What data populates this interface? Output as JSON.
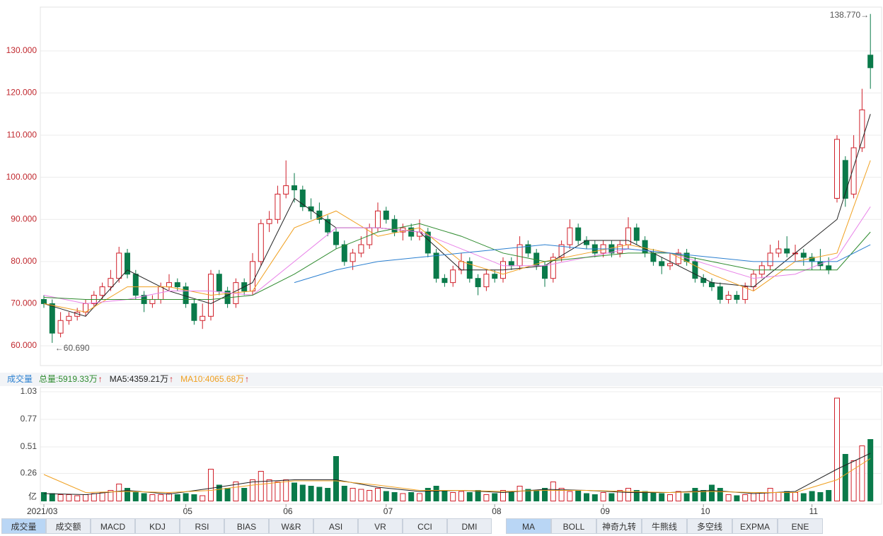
{
  "chart_data": [
    {
      "type": "candlestick",
      "up_color": "#d0202a",
      "down_color": "#0a7a4a",
      "ylim": [
        55.3,
        140.4
      ],
      "yticks": [
        {
          "value": 60,
          "label": "60.000"
        },
        {
          "value": 70,
          "label": "70.000"
        },
        {
          "value": 80,
          "label": "80.000"
        },
        {
          "value": 90,
          "label": "90.000"
        },
        {
          "value": 100,
          "label": "100.000"
        },
        {
          "value": 110,
          "label": "110.000"
        },
        {
          "value": 120,
          "label": "120.000"
        },
        {
          "value": 130,
          "label": "130.000"
        }
      ],
      "grid": true,
      "ohlc": [
        [
          71,
          72,
          69,
          70
        ],
        [
          70,
          71,
          60.69,
          63
        ],
        [
          63,
          68,
          62,
          66
        ],
        [
          66,
          68,
          65,
          67
        ],
        [
          67,
          69,
          66,
          68
        ],
        [
          68,
          71,
          67,
          70
        ],
        [
          70,
          73,
          69,
          72
        ],
        [
          72,
          75,
          71,
          74
        ],
        [
          74,
          78,
          73,
          76
        ],
        [
          76,
          83.5,
          75,
          82
        ],
        [
          82,
          83,
          76,
          77
        ],
        [
          77,
          78,
          71,
          72
        ],
        [
          72,
          73,
          68,
          70
        ],
        [
          70,
          72,
          69,
          71
        ],
        [
          71,
          75,
          70,
          74
        ],
        [
          74,
          77,
          73,
          75
        ],
        [
          75,
          76,
          73,
          74
        ],
        [
          74,
          75,
          69,
          70
        ],
        [
          70,
          71,
          65,
          66
        ],
        [
          66,
          70,
          64,
          67
        ],
        [
          67,
          78,
          66,
          77
        ],
        [
          77,
          78,
          72,
          73
        ],
        [
          73,
          74,
          69,
          70
        ],
        [
          70,
          76,
          69,
          75
        ],
        [
          75,
          76,
          72,
          73
        ],
        [
          73,
          82,
          72,
          80
        ],
        [
          80,
          90,
          79,
          89
        ],
        [
          89,
          92,
          87,
          90
        ],
        [
          90,
          98,
          89,
          96
        ],
        [
          96,
          104,
          95,
          98
        ],
        [
          98,
          101,
          94,
          97
        ],
        [
          97,
          98,
          92,
          93
        ],
        [
          93,
          95,
          90,
          92
        ],
        [
          92,
          94,
          89,
          90
        ],
        [
          90,
          91,
          86,
          87
        ],
        [
          87,
          88,
          83,
          84
        ],
        [
          84,
          85,
          79,
          80
        ],
        [
          80,
          83,
          78,
          82
        ],
        [
          82,
          86,
          81,
          84
        ],
        [
          84,
          89,
          83,
          88
        ],
        [
          88,
          94,
          87,
          92
        ],
        [
          92,
          93,
          89,
          90
        ],
        [
          90,
          91,
          86,
          87
        ],
        [
          87,
          89,
          85,
          88
        ],
        [
          88,
          89,
          85,
          86
        ],
        [
          86,
          90,
          85,
          87
        ],
        [
          87,
          88,
          81,
          82
        ],
        [
          82,
          83,
          75,
          76
        ],
        [
          76,
          77,
          74,
          75
        ],
        [
          75,
          79,
          74,
          78
        ],
        [
          78,
          82,
          77,
          80
        ],
        [
          80,
          81,
          75,
          76
        ],
        [
          76,
          77,
          72,
          74
        ],
        [
          74,
          78,
          73,
          77
        ],
        [
          77,
          78,
          75,
          76
        ],
        [
          76,
          81,
          75,
          80
        ],
        [
          80,
          81,
          78,
          79
        ],
        [
          79,
          86,
          78,
          84
        ],
        [
          84,
          85,
          81,
          82
        ],
        [
          82,
          83,
          78,
          79
        ],
        [
          79,
          80,
          74,
          76
        ],
        [
          76,
          82,
          75,
          81
        ],
        [
          81,
          85,
          80,
          84
        ],
        [
          84,
          90,
          83,
          88
        ],
        [
          88,
          89,
          84,
          85
        ],
        [
          85,
          86,
          83,
          84
        ],
        [
          84,
          85,
          81,
          82
        ],
        [
          82,
          85,
          81,
          84
        ],
        [
          84,
          85,
          81,
          82
        ],
        [
          82,
          85,
          81,
          84
        ],
        [
          84,
          90.5,
          83,
          88
        ],
        [
          88,
          89,
          84,
          85
        ],
        [
          85,
          86,
          81,
          82
        ],
        [
          82,
          83,
          79,
          80
        ],
        [
          80,
          81,
          77,
          79
        ],
        [
          79,
          82,
          78,
          79.5
        ],
        [
          79.5,
          83,
          79,
          82
        ],
        [
          82,
          83,
          79,
          80
        ],
        [
          80,
          81,
          75,
          76
        ],
        [
          76,
          77,
          74,
          75
        ],
        [
          75,
          76,
          73,
          74
        ],
        [
          74,
          75,
          70,
          71
        ],
        [
          71,
          73,
          70,
          72
        ],
        [
          72,
          73,
          70,
          71
        ],
        [
          71,
          75,
          70,
          74
        ],
        [
          74,
          78,
          73,
          77
        ],
        [
          77,
          80,
          76,
          79
        ],
        [
          79,
          84,
          78,
          82
        ],
        [
          82,
          85,
          81,
          83
        ],
        [
          83,
          86,
          81,
          82
        ],
        [
          82,
          84,
          80,
          82
        ],
        [
          82,
          83,
          79,
          81
        ],
        [
          81,
          82,
          78,
          80
        ],
        [
          80,
          83,
          78,
          79
        ],
        [
          79,
          81,
          77,
          78
        ],
        [
          95,
          110,
          94,
          109
        ],
        [
          104,
          105,
          93,
          95
        ],
        [
          96,
          110,
          95,
          107
        ],
        [
          107,
          121,
          106,
          116
        ],
        [
          129,
          138.77,
          121,
          126
        ]
      ],
      "lines": [
        {
          "color": "#222222",
          "x": [
            0,
            5,
            10,
            15,
            20,
            25,
            30,
            35,
            40,
            45,
            50,
            55,
            60,
            65,
            70,
            75,
            80,
            85,
            90,
            95,
            99
          ],
          "values": [
            70,
            67,
            78,
            73,
            70,
            75,
            95,
            88,
            88,
            87,
            78,
            78,
            79,
            85,
            85,
            80,
            75,
            74,
            82,
            90,
            115
          ]
        },
        {
          "color": "#f0a020",
          "x": [
            0,
            5,
            10,
            15,
            20,
            25,
            30,
            35,
            40,
            45,
            50,
            55,
            60,
            65,
            70,
            75,
            80,
            85,
            90,
            95,
            99
          ],
          "values": [
            70,
            68,
            74,
            74,
            72,
            73,
            88,
            92,
            86,
            88,
            80,
            77,
            80,
            82,
            84,
            82,
            77,
            73,
            80,
            82,
            104
          ]
        },
        {
          "color": "#e880e8",
          "x": [
            0,
            5,
            10,
            15,
            20,
            25,
            30,
            35,
            40,
            45,
            50,
            55,
            60,
            65,
            70,
            75,
            80,
            85,
            90,
            95,
            99
          ],
          "values": [
            72,
            70,
            71,
            73,
            73,
            72,
            80,
            88,
            88,
            87,
            83,
            79,
            79,
            81,
            83,
            82,
            79,
            76,
            77,
            81,
            93
          ]
        },
        {
          "color": "#2e8b2e",
          "x": [
            0,
            5,
            10,
            15,
            20,
            25,
            30,
            35,
            40,
            45,
            50,
            55,
            60,
            65,
            70,
            75,
            80,
            85,
            90,
            95,
            99
          ],
          "values": [
            71.5,
            71,
            71,
            71,
            71,
            72,
            77,
            83,
            87,
            89,
            86,
            82,
            80,
            81,
            82,
            82,
            80,
            78,
            78,
            78,
            87
          ]
        },
        {
          "color": "#2a7fd0",
          "x": [
            30,
            35,
            40,
            45,
            50,
            55,
            60,
            65,
            70,
            75,
            80,
            85,
            90,
            95,
            99
          ],
          "values": [
            75,
            78,
            80,
            81,
            82,
            83,
            84,
            83,
            83,
            82,
            81,
            80,
            80,
            80,
            84
          ]
        }
      ],
      "annotations": [
        {
          "text": "138.770→",
          "x": 99,
          "y": 138.77
        },
        {
          "text": "←60.690",
          "x": 1,
          "y": 60.69
        }
      ]
    },
    {
      "type": "bar",
      "unit": "亿",
      "header": {
        "title": "成交量",
        "items": [
          {
            "text": "总量:5919.33万",
            "arrow": "↑",
            "color": "#2e8b2e"
          },
          {
            "text": "MA5:4359.21万",
            "arrow": "↑",
            "color": "#222222"
          },
          {
            "text": "MA10:4065.68万",
            "arrow": "↑",
            "color": "#f0a020"
          }
        ]
      },
      "ylim": [
        -0.03,
        1.07
      ],
      "yticks": [
        0.26,
        0.51,
        0.77,
        1.03
      ],
      "grid": true,
      "categories": [
        "2021/03",
        null,
        null,
        null,
        null,
        null,
        null,
        null,
        null,
        null,
        null,
        null,
        null,
        null,
        null,
        null,
        null,
        "05",
        null,
        null,
        null,
        null,
        null,
        null,
        null,
        null,
        null,
        null,
        null,
        "06",
        null,
        null,
        null,
        null,
        null,
        null,
        null,
        null,
        null,
        null,
        null,
        "07",
        null,
        null,
        null,
        null,
        null,
        null,
        null,
        null,
        null,
        null,
        null,
        null,
        "08",
        null,
        null,
        null,
        null,
        null,
        null,
        null,
        null,
        null,
        null,
        null,
        null,
        "09",
        null,
        null,
        null,
        null,
        null,
        null,
        null,
        null,
        null,
        null,
        null,
        "10",
        null,
        null,
        null,
        null,
        null,
        null,
        null,
        null,
        null,
        null,
        null,
        null,
        "11",
        null,
        null,
        null,
        null,
        null,
        null,
        null
      ],
      "values": [
        0.08,
        0.07,
        0.06,
        0.06,
        0.05,
        0.06,
        0.07,
        0.08,
        0.1,
        0.16,
        0.12,
        0.08,
        0.07,
        0.06,
        0.06,
        0.07,
        0.06,
        0.07,
        0.06,
        0.05,
        0.3,
        0.15,
        0.12,
        0.18,
        0.12,
        0.2,
        0.28,
        0.2,
        0.18,
        0.2,
        0.17,
        0.15,
        0.14,
        0.13,
        0.12,
        0.42,
        0.14,
        0.12,
        0.11,
        0.1,
        0.12,
        0.09,
        0.08,
        0.07,
        0.08,
        0.07,
        0.12,
        0.14,
        0.1,
        0.08,
        0.09,
        0.08,
        0.1,
        0.06,
        0.07,
        0.1,
        0.08,
        0.14,
        0.11,
        0.1,
        0.12,
        0.18,
        0.12,
        0.09,
        0.1,
        0.07,
        0.06,
        0.08,
        0.07,
        0.1,
        0.12,
        0.1,
        0.09,
        0.08,
        0.07,
        0.06,
        0.09,
        0.07,
        0.12,
        0.1,
        0.15,
        0.12,
        0.06,
        0.05,
        0.06,
        0.07,
        0.08,
        0.12,
        0.08,
        0.09,
        0.08,
        0.07,
        0.09,
        0.08,
        0.1,
        0.97,
        0.44,
        0.38,
        0.52,
        0.58
      ],
      "lines": [
        {
          "color": "#222222",
          "x": [
            0,
            5,
            10,
            15,
            20,
            25,
            30,
            35,
            40,
            45,
            50,
            55,
            60,
            65,
            70,
            75,
            80,
            85,
            90,
            95,
            99
          ],
          "values": [
            0.07,
            0.06,
            0.1,
            0.065,
            0.12,
            0.18,
            0.2,
            0.2,
            0.13,
            0.09,
            0.1,
            0.08,
            0.11,
            0.1,
            0.08,
            0.08,
            0.1,
            0.07,
            0.09,
            0.3,
            0.45
          ]
        },
        {
          "color": "#f0a020",
          "x": [
            0,
            5,
            10,
            15,
            20,
            25,
            30,
            35,
            40,
            45,
            50,
            55,
            60,
            65,
            70,
            75,
            80,
            85,
            90,
            95,
            99
          ],
          "values": [
            0.25,
            0.08,
            0.09,
            0.08,
            0.1,
            0.15,
            0.19,
            0.19,
            0.15,
            0.1,
            0.1,
            0.09,
            0.1,
            0.1,
            0.09,
            0.08,
            0.09,
            0.08,
            0.08,
            0.2,
            0.4
          ]
        }
      ]
    }
  ],
  "tabs": {
    "indicators": [
      "成交量",
      "成交额",
      "MACD",
      "KDJ",
      "RSI",
      "BIAS",
      "W&R",
      "ASI",
      "VR",
      "CCI",
      "DMI"
    ],
    "indicators_active": 0,
    "overlays": [
      "MA",
      "BOLL",
      "神奇九转",
      "牛熊线",
      "多空线",
      "EXPMA",
      "ENE"
    ],
    "overlays_active": 0
  }
}
